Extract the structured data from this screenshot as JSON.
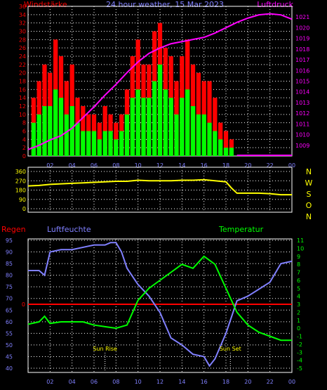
{
  "header": {
    "left_label": "Windstärke",
    "center_label": "24 hour weather, 15 Mar 2023",
    "right_label": "Luftdruck"
  },
  "colors": {
    "wind_max": "#ff0000",
    "wind_avg": "#00ff00",
    "pressure": "#ff00ff",
    "direction": "#ffff00",
    "humidity": "#8080ff",
    "temperature": "#00ff00",
    "rain": "#ff0000",
    "axis_left_top": "#ff0000",
    "axis_right_top": "#ff00ff",
    "axis_right_bottom": "#00ff00",
    "axis_left_bottom": "#8080ff",
    "hour_labels": "#8080ff",
    "direction_labels": "#ffff00"
  },
  "x_axis": {
    "hour_labels": [
      "02",
      "04",
      "06",
      "08",
      "10",
      "12",
      "14",
      "16",
      "18",
      "20",
      "22",
      "00"
    ]
  },
  "chart_data": [
    {
      "type": "bar",
      "title": "24 hour weather, 15 Mar 2023",
      "ylabel_left": "Windstärke",
      "ylabel_right": "Luftdruck",
      "x_range_hours": [
        0,
        24
      ],
      "ylim_left": [
        0,
        36
      ],
      "ylim_right": [
        1008,
        1022
      ],
      "left_ticks": [
        "0",
        "2",
        "4",
        "6",
        "8",
        "10",
        "12",
        "14",
        "16",
        "18",
        "20",
        "22",
        "24",
        "26",
        "28",
        "30",
        "32",
        "34",
        "36"
      ],
      "right_ticks": [
        "1009",
        "1010",
        "1011",
        "1012",
        "1013",
        "1014",
        "1015",
        "1016",
        "1017",
        "1018",
        "1019",
        "1020",
        "1021"
      ],
      "series": [
        {
          "name": "Windstärke",
          "kind": "bars_max",
          "x_hours": [
            0.5,
            1,
            1.5,
            2,
            2.5,
            3,
            3.5,
            4,
            4.5,
            5,
            5.5,
            6,
            6.5,
            7,
            7.5,
            8,
            8.5,
            9,
            9.5,
            10,
            10.5,
            11,
            11.5,
            12,
            12.5,
            13,
            13.5,
            14,
            14.5,
            15,
            15.5,
            16,
            16.5,
            17,
            17.5,
            18,
            18.5,
            19,
            20,
            21,
            22,
            23,
            24
          ],
          "values": [
            14,
            18,
            22,
            20,
            28,
            24,
            18,
            22,
            14,
            12,
            10,
            10,
            8,
            12,
            10,
            8,
            10,
            16,
            24,
            28,
            22,
            22,
            30,
            32,
            26,
            24,
            18,
            24,
            28,
            22,
            20,
            18,
            18,
            14,
            8,
            6,
            4,
            0,
            0,
            0,
            0,
            0,
            0
          ]
        },
        {
          "name": "Durchschnitt",
          "kind": "bars_avg",
          "x_hours": [
            0.5,
            1,
            1.5,
            2,
            2.5,
            3,
            3.5,
            4,
            4.5,
            5,
            5.5,
            6,
            6.5,
            7,
            7.5,
            8,
            8.5,
            9,
            9.5,
            10,
            10.5,
            11,
            11.5,
            12,
            12.5,
            13,
            13.5,
            14,
            14.5,
            15,
            15.5,
            16,
            16.5,
            17,
            17.5,
            18,
            18.5,
            19,
            20,
            21,
            22,
            23,
            24
          ],
          "values": [
            8,
            10,
            12,
            12,
            16,
            14,
            10,
            12,
            8,
            6,
            6,
            6,
            4,
            6,
            6,
            4,
            6,
            10,
            14,
            16,
            14,
            14,
            18,
            22,
            16,
            14,
            10,
            14,
            16,
            12,
            10,
            10,
            8,
            6,
            4,
            2,
            2,
            0,
            0,
            0,
            0,
            0,
            0
          ]
        },
        {
          "name": "Luftdruck",
          "kind": "line",
          "x_hours": [
            0,
            1,
            2,
            3,
            4,
            5,
            6,
            7,
            8,
            9,
            10,
            11,
            12,
            13,
            14,
            15,
            16,
            17,
            18,
            19,
            20,
            21,
            22,
            23,
            24
          ],
          "values": [
            1008.6,
            1009.0,
            1009.5,
            1009.9,
            1010.6,
            1011.6,
            1012.6,
            1013.7,
            1014.7,
            1015.8,
            1016.8,
            1017.6,
            1018.1,
            1018.5,
            1018.7,
            1018.9,
            1019.1,
            1019.5,
            1020.0,
            1020.5,
            1020.9,
            1021.2,
            1021.3,
            1021.2,
            1020.8
          ]
        }
      ]
    },
    {
      "type": "line",
      "title": "",
      "ylabel_right": "N W S O N",
      "x_range_hours": [
        0,
        24
      ],
      "ylim": [
        0,
        360
      ],
      "ticks": [
        "0",
        "90",
        "180",
        "270",
        "360"
      ],
      "direction_letters": [
        "N",
        "W",
        "S",
        "O",
        "N"
      ],
      "series": [
        {
          "name": "Windrichtung",
          "x_hours": [
            0,
            1,
            2,
            3,
            4,
            5,
            6,
            7,
            8,
            9,
            10,
            11,
            12,
            13,
            14,
            15,
            16,
            17,
            18,
            18.5,
            19,
            20,
            21,
            22,
            23,
            24
          ],
          "values": [
            220,
            225,
            235,
            240,
            245,
            250,
            255,
            260,
            265,
            265,
            275,
            270,
            270,
            270,
            275,
            275,
            280,
            270,
            260,
            200,
            150,
            150,
            150,
            145,
            135,
            135
          ]
        }
      ]
    },
    {
      "type": "line",
      "title": "",
      "ylabel_left": "Luftfeuchte",
      "ylabel_right": "Temperatur",
      "rain_label": "Regen",
      "x_range_hours": [
        0,
        24
      ],
      "ylim_left": [
        40,
        95
      ],
      "ylim_right": [
        -5,
        11
      ],
      "left_ticks": [
        "40",
        "45",
        "50",
        "55",
        "60",
        "65",
        "70",
        "75",
        "80",
        "85",
        "90",
        "95"
      ],
      "right_ticks": [
        "-5",
        "-4",
        "-3",
        "-2",
        "-1",
        "0",
        "1",
        "2",
        "3",
        "4",
        "5",
        "6",
        "7",
        "8",
        "9",
        "10",
        "11"
      ],
      "rain_ticks": [
        "0"
      ],
      "annotations": [
        "Sun Rise",
        "Sun Set"
      ],
      "annotation_hours": [
        7.0,
        18.4
      ],
      "series": [
        {
          "name": "Luftfeuchte",
          "x_hours": [
            0,
            1,
            1.5,
            2,
            3,
            4,
            5,
            6,
            7,
            7.5,
            8,
            8.5,
            9,
            10,
            11,
            12,
            13,
            14,
            15,
            16,
            16.5,
            17,
            18,
            19,
            20,
            21,
            22,
            23,
            24
          ],
          "values": [
            82,
            82,
            80,
            90,
            91,
            91,
            92,
            93,
            93,
            94,
            94,
            90,
            83,
            76,
            71,
            64,
            53,
            50,
            46,
            45,
            41,
            44,
            55,
            69,
            71,
            74,
            77,
            85,
            86
          ]
        },
        {
          "name": "Temperatur",
          "x_hours": [
            0,
            1,
            1.5,
            2,
            3,
            4,
            5,
            6,
            7,
            8,
            9,
            10,
            11,
            12,
            13,
            14,
            15,
            16,
            17,
            18,
            19,
            20,
            21,
            22,
            23,
            24
          ],
          "values": [
            0.5,
            0.8,
            1.5,
            0.6,
            0.8,
            0.8,
            0.8,
            0.4,
            0.2,
            0.0,
            0.4,
            3.5,
            5.0,
            6.0,
            7.0,
            8.0,
            7.5,
            9.0,
            8.0,
            5.0,
            2.0,
            0.4,
            -0.5,
            -1.0,
            -1.5,
            -1.5
          ]
        }
      ]
    }
  ]
}
